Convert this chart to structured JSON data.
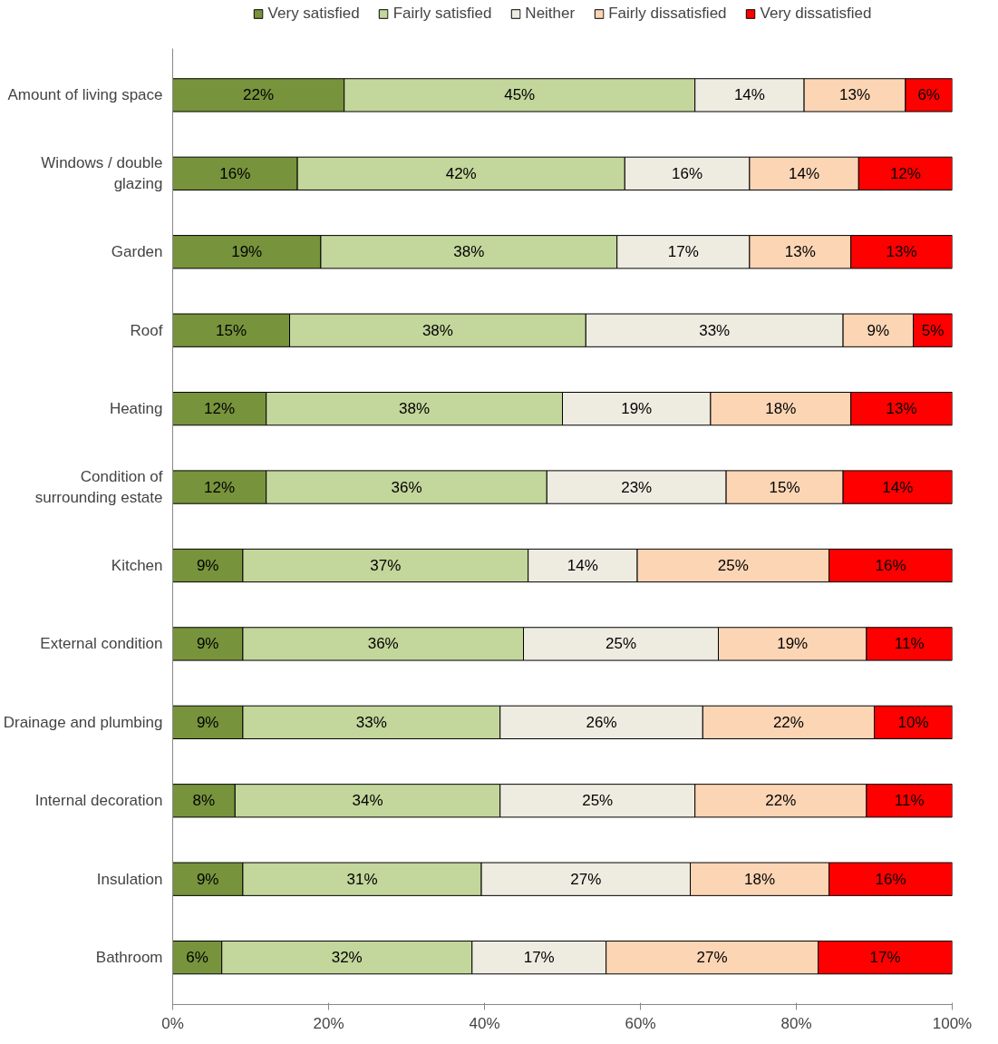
{
  "chart_data": {
    "type": "bar",
    "orientation": "horizontal",
    "stacked": true,
    "legend": "top",
    "grid": false,
    "categories": [
      "Amount of living space",
      "Windows / double glazing",
      "Garden",
      "Roof",
      "Heating",
      "Condition of surrounding estate",
      "Kitchen",
      "External condition",
      "Drainage and plumbing",
      "Internal decoration",
      "Insulation",
      "Bathroom"
    ],
    "xlim": [
      0,
      100
    ],
    "xticks": [
      {
        "value": 0,
        "label": "0%"
      },
      {
        "value": 20,
        "label": "20%"
      },
      {
        "value": 40,
        "label": "40%"
      },
      {
        "value": 60,
        "label": "60%"
      },
      {
        "value": 80,
        "label": "80%"
      },
      {
        "value": 100,
        "label": "100%"
      }
    ],
    "series": [
      {
        "name": "Very satisfied",
        "color": "#77933c",
        "values": [
          22,
          16,
          19,
          15,
          12,
          12,
          9,
          9,
          9,
          8,
          9,
          6.3
        ],
        "value_labels": [
          "22%",
          "16%",
          "19%",
          "15%",
          "12%",
          "12%",
          "9%",
          "9%",
          "9%",
          "8%",
          "9%",
          "6%"
        ]
      },
      {
        "name": "Fairly satisfied",
        "color": "#c3d69b",
        "values": [
          45,
          42,
          38,
          38,
          38,
          36,
          36.6,
          36,
          33,
          34,
          30.6,
          32.1
        ],
        "value_labels": [
          "45%",
          "42%",
          "38%",
          "38%",
          "38%",
          "36%",
          "37%",
          "36%",
          "33%",
          "34%",
          "31%",
          "32%"
        ]
      },
      {
        "name": "Neither",
        "color": "#eeece1",
        "values": [
          14,
          16,
          17,
          33,
          19,
          23,
          14,
          25,
          26,
          25,
          26.8,
          17.2
        ],
        "value_labels": [
          "14%",
          "16%",
          "17%",
          "33%",
          "19%",
          "23%",
          "14%",
          "25%",
          "26%",
          "25%",
          "27%",
          "17%"
        ]
      },
      {
        "name": "Fairly dissatisfied",
        "color": "#fcd5b5",
        "values": [
          13,
          14,
          13,
          9,
          18,
          15,
          24.6,
          19,
          22,
          22,
          17.8,
          27.2
        ],
        "value_labels": [
          "13%",
          "14%",
          "13%",
          "9%",
          "18%",
          "15%",
          "25%",
          "19%",
          "22%",
          "22%",
          "18%",
          "27%"
        ]
      },
      {
        "name": "Very dissatisfied",
        "color": "#ff0000",
        "values": [
          6,
          12,
          13,
          5,
          13,
          14,
          15.8,
          11,
          10,
          11,
          15.8,
          17.2
        ],
        "value_labels": [
          "6%",
          "12%",
          "13%",
          "5%",
          "13%",
          "14%",
          "16%",
          "11%",
          "10%",
          "11%",
          "16%",
          "17%"
        ]
      }
    ]
  }
}
